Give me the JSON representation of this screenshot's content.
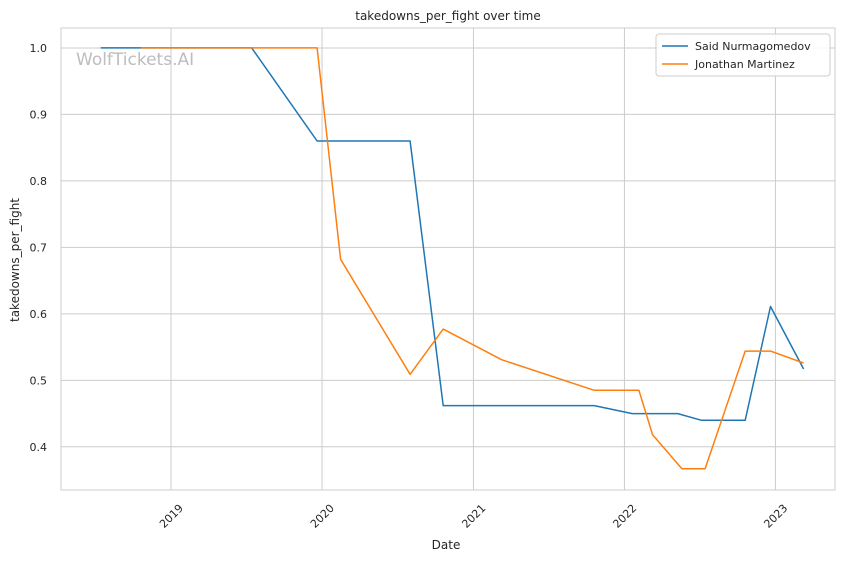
{
  "chart_data": {
    "type": "line",
    "title": "takedowns_per_fight over time",
    "xlabel": "Date",
    "ylabel": "takedowns_per_fight",
    "watermark": "WolfTickets.AI",
    "x_ticks": [
      "2019",
      "2020",
      "2021",
      "2022",
      "2023"
    ],
    "x_tick_dates": [
      "2019-01-01",
      "2020-01-01",
      "2021-01-01",
      "2022-01-01",
      "2023-01-01"
    ],
    "y_ticks": [
      0.4,
      0.5,
      0.6,
      0.7,
      0.8,
      0.9,
      1.0
    ],
    "xlim": [
      "2018-04-10",
      "2023-05-25"
    ],
    "ylim": [
      0.335,
      1.03
    ],
    "grid": true,
    "legend_position": "top-right",
    "series": [
      {
        "name": "Said Nurmagomedov",
        "color": "#1f77b4",
        "points": [
          [
            "2018-07-15",
            1.0
          ],
          [
            "2019-07-15",
            1.0
          ],
          [
            "2019-12-20",
            0.86
          ],
          [
            "2020-08-01",
            0.86
          ],
          [
            "2020-10-20",
            0.462
          ],
          [
            "2021-10-20",
            0.462
          ],
          [
            "2022-01-20",
            0.45
          ],
          [
            "2022-05-10",
            0.45
          ],
          [
            "2022-07-05",
            0.44
          ],
          [
            "2022-10-20",
            0.44
          ],
          [
            "2022-12-20",
            0.611
          ],
          [
            "2023-03-10",
            0.517
          ]
        ]
      },
      {
        "name": "Jonathan Martinez",
        "color": "#ff7f0e",
        "points": [
          [
            "2018-10-20",
            1.0
          ],
          [
            "2019-12-20",
            1.0
          ],
          [
            "2020-02-15",
            0.682
          ],
          [
            "2020-08-01",
            0.509
          ],
          [
            "2020-10-20",
            0.577
          ],
          [
            "2021-03-10",
            0.531
          ],
          [
            "2021-10-20",
            0.485
          ],
          [
            "2022-02-05",
            0.485
          ],
          [
            "2022-03-10",
            0.418
          ],
          [
            "2022-05-20",
            0.367
          ],
          [
            "2022-07-15",
            0.367
          ],
          [
            "2022-10-20",
            0.544
          ],
          [
            "2022-12-20",
            0.544
          ],
          [
            "2023-03-10",
            0.526
          ]
        ]
      }
    ]
  }
}
